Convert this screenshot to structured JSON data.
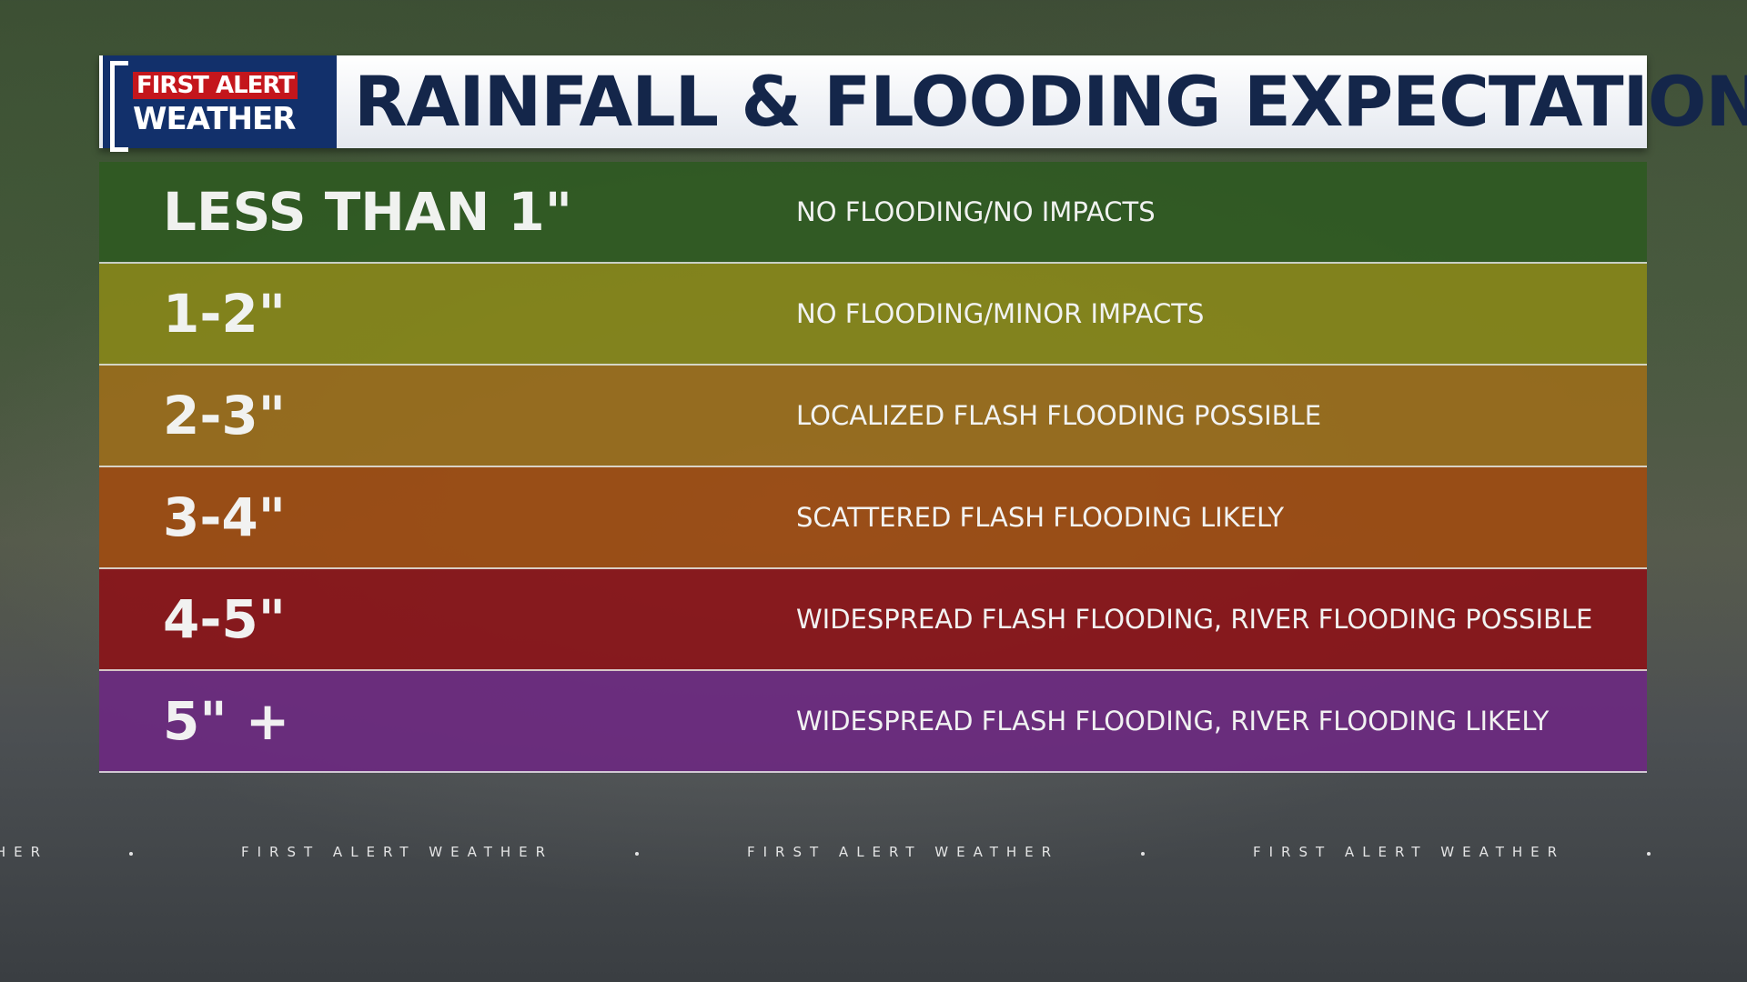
{
  "header": {
    "logo_top": "FIRST ALERT",
    "logo_bottom": "WEATHER",
    "title": "RAINFALL & FLOODING EXPECTATIONS"
  },
  "table": {
    "rows": [
      {
        "range": "LESS THAN 1\"",
        "impact": "NO FLOODING/NO IMPACTS",
        "color": "#2f5a22"
      },
      {
        "range": "1-2\"",
        "impact": "NO FLOODING/MINOR IMPACTS",
        "color": "#86861a"
      },
      {
        "range": "2-3\"",
        "impact": "LOCALIZED FLASH FLOODING POSSIBLE",
        "color": "#9a6d1c"
      },
      {
        "range": "3-4\"",
        "impact": "SCATTERED FLASH FLOODING LIKELY",
        "color": "#9e4c12"
      },
      {
        "range": "4-5\"",
        "impact": "WIDESPREAD FLASH FLOODING, RIVER FLOODING POSSIBLE",
        "color": "#8a1419"
      },
      {
        "range": "5\" +",
        "impact": "WIDESPREAD FLASH FLOODING, RIVER FLOODING LIKELY",
        "color": "#6c2a80"
      }
    ]
  },
  "ticker": {
    "text": "FIRST ALERT WEATHER"
  }
}
